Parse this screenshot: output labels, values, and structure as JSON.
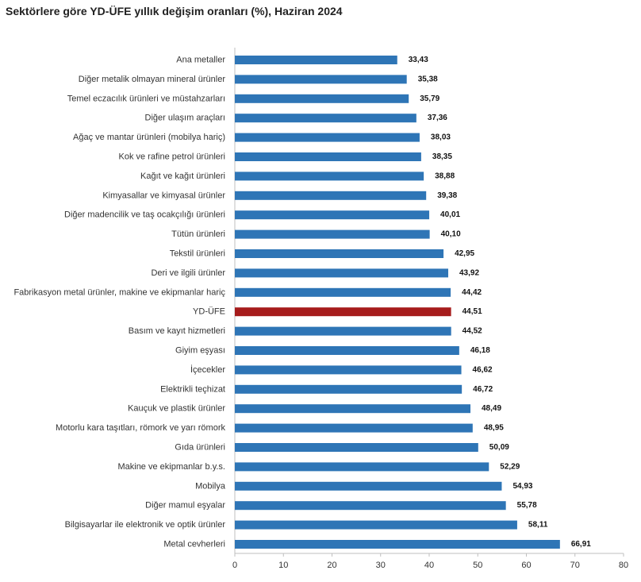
{
  "chart_data": {
    "type": "bar",
    "orientation": "horizontal",
    "title": "Sektörlere göre YD-ÜFE yıllık değişim oranları (%), Haziran 2024",
    "xlabel": "",
    "ylabel": "",
    "xlim": [
      0,
      80
    ],
    "xticks": [
      0,
      10,
      20,
      30,
      40,
      50,
      60,
      70,
      80
    ],
    "grid": false,
    "legend": "none",
    "bar_color": "#2e75b6",
    "highlight_color": "#a61c1c",
    "highlight_category": "YD-ÜFE",
    "categories": [
      "Ana metaller",
      "Diğer metalik olmayan mineral ürünler",
      "Temel eczacılık ürünleri ve müstahzarları",
      "Diğer ulaşım araçları",
      "Ağaç ve mantar ürünleri (mobilya hariç)",
      "Kok ve rafine petrol ürünleri",
      "Kağıt ve kağıt ürünleri",
      "Kimyasallar ve kimyasal ürünler",
      "Diğer madencilik ve taş ocakçılığı ürünleri",
      "Tütün ürünleri",
      "Tekstil ürünleri",
      "Deri ve ilgili ürünler",
      "Fabrikasyon metal ürünler, makine ve ekipmanlar hariç",
      "YD-ÜFE",
      "Basım ve kayıt hizmetleri",
      "Giyim eşyası",
      "İçecekler",
      "Elektrikli teçhizat",
      "Kauçuk ve plastik ürünler",
      "Motorlu kara taşıtları, römork ve yarı römork",
      "Gıda ürünleri",
      "Makine ve ekipmanlar b.y.s.",
      "Mobilya",
      "Diğer mamul eşyalar",
      "Bilgisayarlar ile elektronik ve optik ürünler",
      "Metal cevherleri"
    ],
    "values": [
      33.43,
      35.38,
      35.79,
      37.36,
      38.03,
      38.35,
      38.88,
      39.38,
      40.01,
      40.1,
      42.95,
      43.92,
      44.42,
      44.51,
      44.52,
      46.18,
      46.62,
      46.72,
      48.49,
      48.95,
      50.09,
      52.29,
      54.93,
      55.78,
      58.11,
      66.91
    ],
    "value_labels": [
      "33,43",
      "35,38",
      "35,79",
      "37,36",
      "38,03",
      "38,35",
      "38,88",
      "39,38",
      "40,01",
      "40,10",
      "42,95",
      "43,92",
      "44,42",
      "44,51",
      "44,52",
      "46,18",
      "46,62",
      "46,72",
      "48,49",
      "48,95",
      "50,09",
      "52,29",
      "54,93",
      "55,78",
      "58,11",
      "66,91"
    ]
  }
}
